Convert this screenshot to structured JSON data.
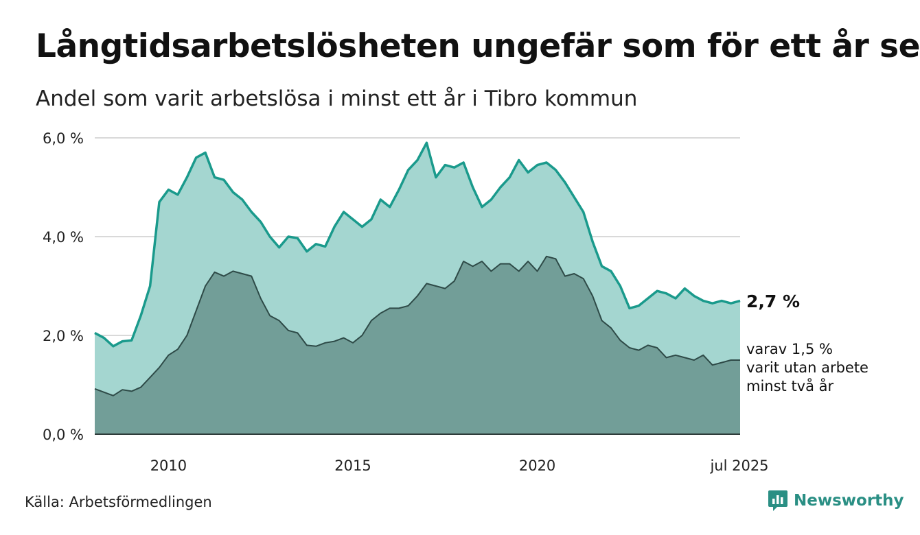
{
  "title": "Långtidsarbetslösheten ungefär som för ett år sen",
  "subtitle": "Andel som varit arbetslösa i minst ett år i Tibro kommun",
  "source": "Källa: Arbetsförmedlingen",
  "brand": {
    "name": "Newsworthy",
    "icon": "newsworthy-logo-icon",
    "color": "#2a8f84"
  },
  "end_labels": {
    "total": "2,7 %",
    "sub": [
      "varav 1,5 %",
      "varit utan arbete",
      "minst två år"
    ]
  },
  "chart_data": {
    "type": "area",
    "title": "Långtidsarbetslösheten ungefär som för ett år sen",
    "subtitle": "Andel som varit arbetslösa i minst ett år i Tibro kommun",
    "xlabel": "",
    "ylabel": "",
    "xlim": [
      2008.0,
      2025.5
    ],
    "ylim": [
      0,
      6
    ],
    "y_ticks": [
      "0,0 %",
      "2,0 %",
      "4,0 %",
      "6,0 %"
    ],
    "y_tick_values": [
      0,
      2,
      4,
      6
    ],
    "x_ticks": [
      "2010",
      "2015",
      "2020",
      "jul 2025"
    ],
    "x_tick_values": [
      2010,
      2015,
      2020,
      2025.5
    ],
    "grid": true,
    "colors": {
      "total_fill": "#a4d6d0",
      "total_line": "#1a9a8c",
      "sub_fill": "#729e98",
      "sub_line": "#2e4a47"
    },
    "series": [
      {
        "key": "total",
        "end_label": "2,7 %",
        "x": [
          2008.0,
          2008.25,
          2008.5,
          2008.75,
          2009.0,
          2009.25,
          2009.5,
          2009.75,
          2010.0,
          2010.25,
          2010.5,
          2010.75,
          2011.0,
          2011.25,
          2011.5,
          2011.75,
          2012.0,
          2012.25,
          2012.5,
          2012.75,
          2013.0,
          2013.25,
          2013.5,
          2013.75,
          2014.0,
          2014.25,
          2014.5,
          2014.75,
          2015.0,
          2015.25,
          2015.5,
          2015.75,
          2016.0,
          2016.25,
          2016.5,
          2016.75,
          2017.0,
          2017.25,
          2017.5,
          2017.75,
          2018.0,
          2018.25,
          2018.5,
          2018.75,
          2019.0,
          2019.25,
          2019.5,
          2019.75,
          2020.0,
          2020.25,
          2020.5,
          2020.75,
          2021.0,
          2021.25,
          2021.5,
          2021.75,
          2022.0,
          2022.25,
          2022.5,
          2022.75,
          2023.0,
          2023.25,
          2023.5,
          2023.75,
          2024.0,
          2024.25,
          2024.5,
          2024.75,
          2025.0,
          2025.25,
          2025.5
        ],
        "values": [
          2.05,
          1.95,
          1.78,
          1.88,
          1.9,
          2.4,
          3.0,
          4.7,
          4.95,
          4.85,
          5.2,
          5.6,
          5.7,
          5.2,
          5.15,
          4.9,
          4.75,
          4.5,
          4.3,
          4.0,
          3.78,
          4.0,
          3.97,
          3.7,
          3.85,
          3.8,
          4.2,
          4.5,
          4.35,
          4.2,
          4.35,
          4.75,
          4.6,
          4.95,
          5.35,
          5.55,
          5.9,
          5.2,
          5.45,
          5.4,
          5.5,
          5.0,
          4.6,
          4.75,
          5.0,
          5.2,
          5.55,
          5.3,
          5.45,
          5.5,
          5.35,
          5.1,
          4.8,
          4.5,
          3.9,
          3.4,
          3.3,
          3.0,
          2.55,
          2.6,
          2.75,
          2.9,
          2.85,
          2.75,
          2.95,
          2.8,
          2.7,
          2.65,
          2.7,
          2.65,
          2.7
        ]
      },
      {
        "key": "sub",
        "end_label": "varav 1,5 %",
        "x": [
          2008.0,
          2008.25,
          2008.5,
          2008.75,
          2009.0,
          2009.25,
          2009.5,
          2009.75,
          2010.0,
          2010.25,
          2010.5,
          2010.75,
          2011.0,
          2011.25,
          2011.5,
          2011.75,
          2012.0,
          2012.25,
          2012.5,
          2012.75,
          2013.0,
          2013.25,
          2013.5,
          2013.75,
          2014.0,
          2014.25,
          2014.5,
          2014.75,
          2015.0,
          2015.25,
          2015.5,
          2015.75,
          2016.0,
          2016.25,
          2016.5,
          2016.75,
          2017.0,
          2017.25,
          2017.5,
          2017.75,
          2018.0,
          2018.25,
          2018.5,
          2018.75,
          2019.0,
          2019.25,
          2019.5,
          2019.75,
          2020.0,
          2020.25,
          2020.5,
          2020.75,
          2021.0,
          2021.25,
          2021.5,
          2021.75,
          2022.0,
          2022.25,
          2022.5,
          2022.75,
          2023.0,
          2023.25,
          2023.5,
          2023.75,
          2024.0,
          2024.25,
          2024.5,
          2024.75,
          2025.0,
          2025.25,
          2025.5
        ],
        "values": [
          0.92,
          0.85,
          0.78,
          0.9,
          0.87,
          0.95,
          1.15,
          1.35,
          1.6,
          1.72,
          2.0,
          2.5,
          3.0,
          3.28,
          3.2,
          3.3,
          3.25,
          3.2,
          2.75,
          2.4,
          2.3,
          2.1,
          2.05,
          1.8,
          1.78,
          1.85,
          1.88,
          1.95,
          1.85,
          2.0,
          2.3,
          2.45,
          2.55,
          2.55,
          2.6,
          2.8,
          3.05,
          3.0,
          2.95,
          3.1,
          3.5,
          3.4,
          3.5,
          3.3,
          3.45,
          3.45,
          3.3,
          3.5,
          3.3,
          3.6,
          3.55,
          3.2,
          3.25,
          3.15,
          2.8,
          2.3,
          2.15,
          1.9,
          1.75,
          1.7,
          1.8,
          1.75,
          1.55,
          1.6,
          1.55,
          1.5,
          1.6,
          1.4,
          1.45,
          1.5,
          1.5
        ]
      }
    ]
  }
}
